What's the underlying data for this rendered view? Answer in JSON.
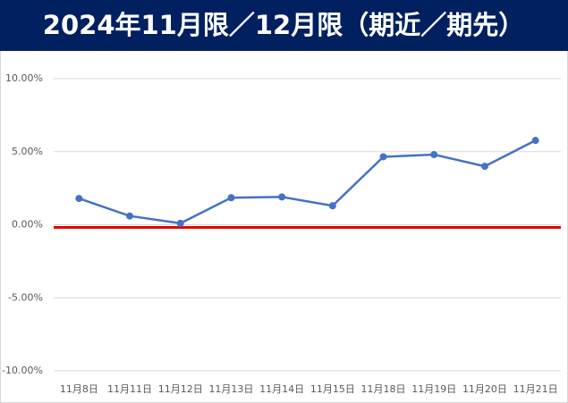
{
  "chart_data": {
    "type": "line",
    "title": "2024年11月限／12月限（期近／期先）",
    "categories": [
      "11月8日",
      "11月11日",
      "11月12日",
      "11月13日",
      "11月14日",
      "11月15日",
      "11月18日",
      "11月19日",
      "11月20日",
      "11月21日"
    ],
    "series": [
      {
        "color": "#4472c4",
        "values": [
          1.8,
          0.6,
          0.1,
          1.85,
          1.9,
          1.3,
          4.65,
          4.8,
          4.0,
          5.77
        ]
      }
    ],
    "ylim": [
      -10,
      10
    ],
    "yticks": [
      {
        "value": -10,
        "label": "-10.00%"
      },
      {
        "value": -5,
        "label": "-5.00%"
      },
      {
        "value": 0,
        "label": "0.00%"
      },
      {
        "value": 5,
        "label": "5.00%"
      },
      {
        "value": 10,
        "label": "10.00%"
      }
    ],
    "grid": true,
    "reference_line": {
      "value": 0,
      "color": "#e00000"
    }
  }
}
